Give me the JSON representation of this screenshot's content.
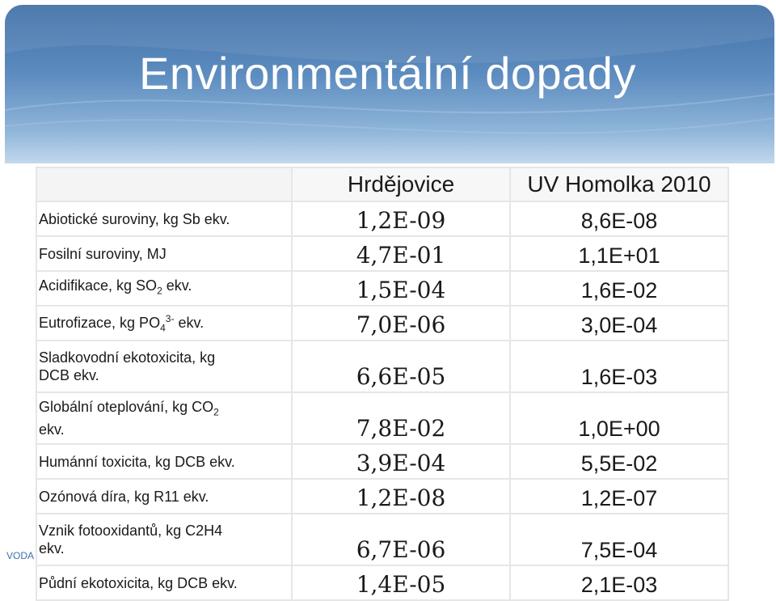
{
  "slide": {
    "title": "Environmentální dopady",
    "corner_label": "VODA"
  },
  "table": {
    "headers": [
      "",
      "Hrdějovice",
      "UV Homolka 2010"
    ],
    "rows": [
      {
        "label": "Abiotické suroviny, kg Sb ekv.",
        "v1": "1,2E-09",
        "v2": "8,6E-08"
      },
      {
        "label": "Fosilní suroviny, MJ",
        "v1": "4,7E-01",
        "v2": "1,1E+01"
      },
      {
        "label_pre": "Acidifikace, kg SO",
        "label_sub": "2",
        "label_post": " ekv.",
        "v1": "1,5E-04",
        "v2": "1,6E-02"
      },
      {
        "label_pre": "Eutrofizace, kg PO",
        "label_sub": "4",
        "label_sup": "3-",
        "label_post": " ekv.",
        "v1": "7,0E-06",
        "v2": "3,0E-04"
      },
      {
        "label_line1": "Sladkovodní ekotoxicita, kg",
        "label_line2": "DCB ekv.",
        "v1": "6,6E-05",
        "v2": "1,6E-03"
      },
      {
        "label_line1_pre": "Globální oteplování, kg CO",
        "label_line1_sub": "2",
        "label_line2": "ekv.",
        "v1": "7,8E-02",
        "v2": "1,0E+00"
      },
      {
        "label": "Humánní toxicita, kg DCB ekv.",
        "v1": "3,9E-04",
        "v2": "5,5E-02"
      },
      {
        "label": "Ozónová díra, kg R11 ekv.",
        "v1": "1,2E-08",
        "v2": "1,2E-07"
      },
      {
        "label_line1": "Vznik fotooxidantů, kg C2H4",
        "label_line2": "ekv.",
        "v1": "6,7E-06",
        "v2": "7,5E-04"
      },
      {
        "label": "Půdní ekotoxicita, kg DCB ekv.",
        "v1": "1,4E-05",
        "v2": "2,1E-03"
      }
    ]
  },
  "colors": {
    "header_blue": "#3f6fa6",
    "title_text": "#ffffff",
    "table_text": "#1a1a1a"
  }
}
